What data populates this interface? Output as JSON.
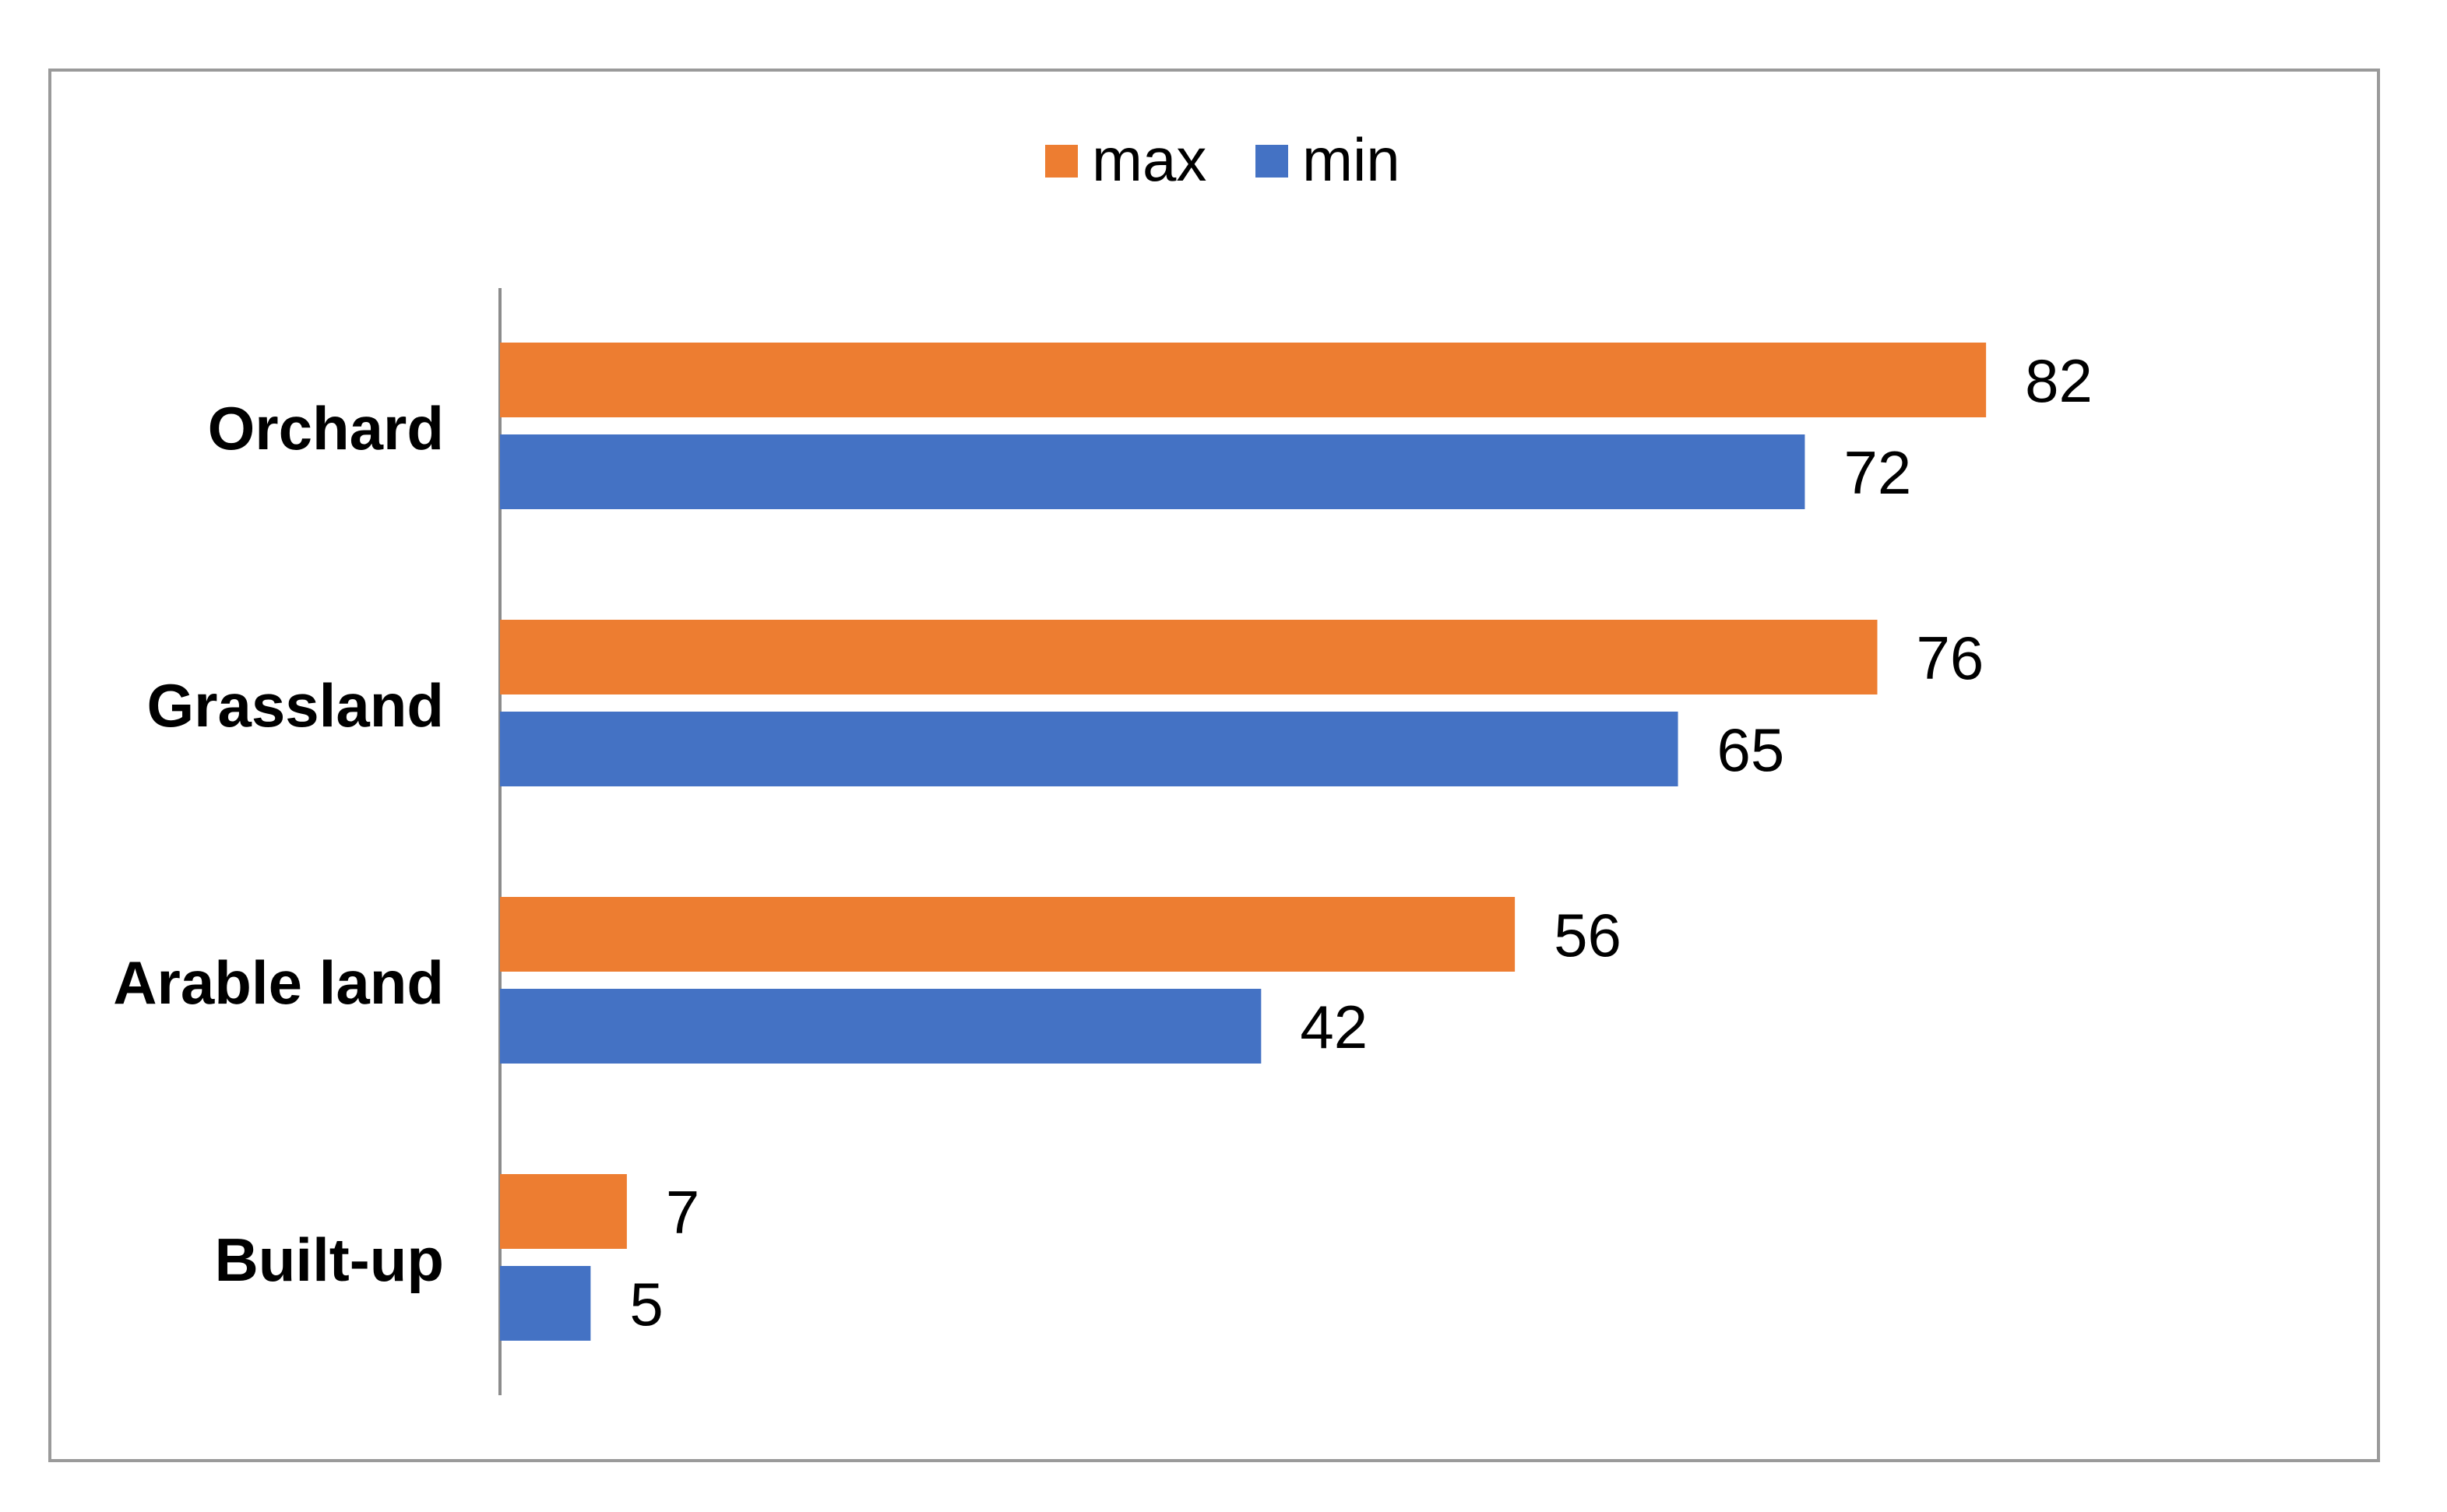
{
  "chart_data": {
    "type": "bar",
    "orientation": "horizontal",
    "categories": [
      "Orchard",
      "Grassland",
      "Arable land",
      "Built-up"
    ],
    "series": [
      {
        "name": "max",
        "color": "#ED7D31",
        "values": [
          82,
          76,
          56,
          7
        ]
      },
      {
        "name": "min",
        "color": "#4472C4",
        "values": [
          72,
          65,
          42,
          5
        ]
      }
    ],
    "xlim": [
      0,
      90
    ],
    "grid": false,
    "legend": "top-center",
    "data_labels": true
  }
}
